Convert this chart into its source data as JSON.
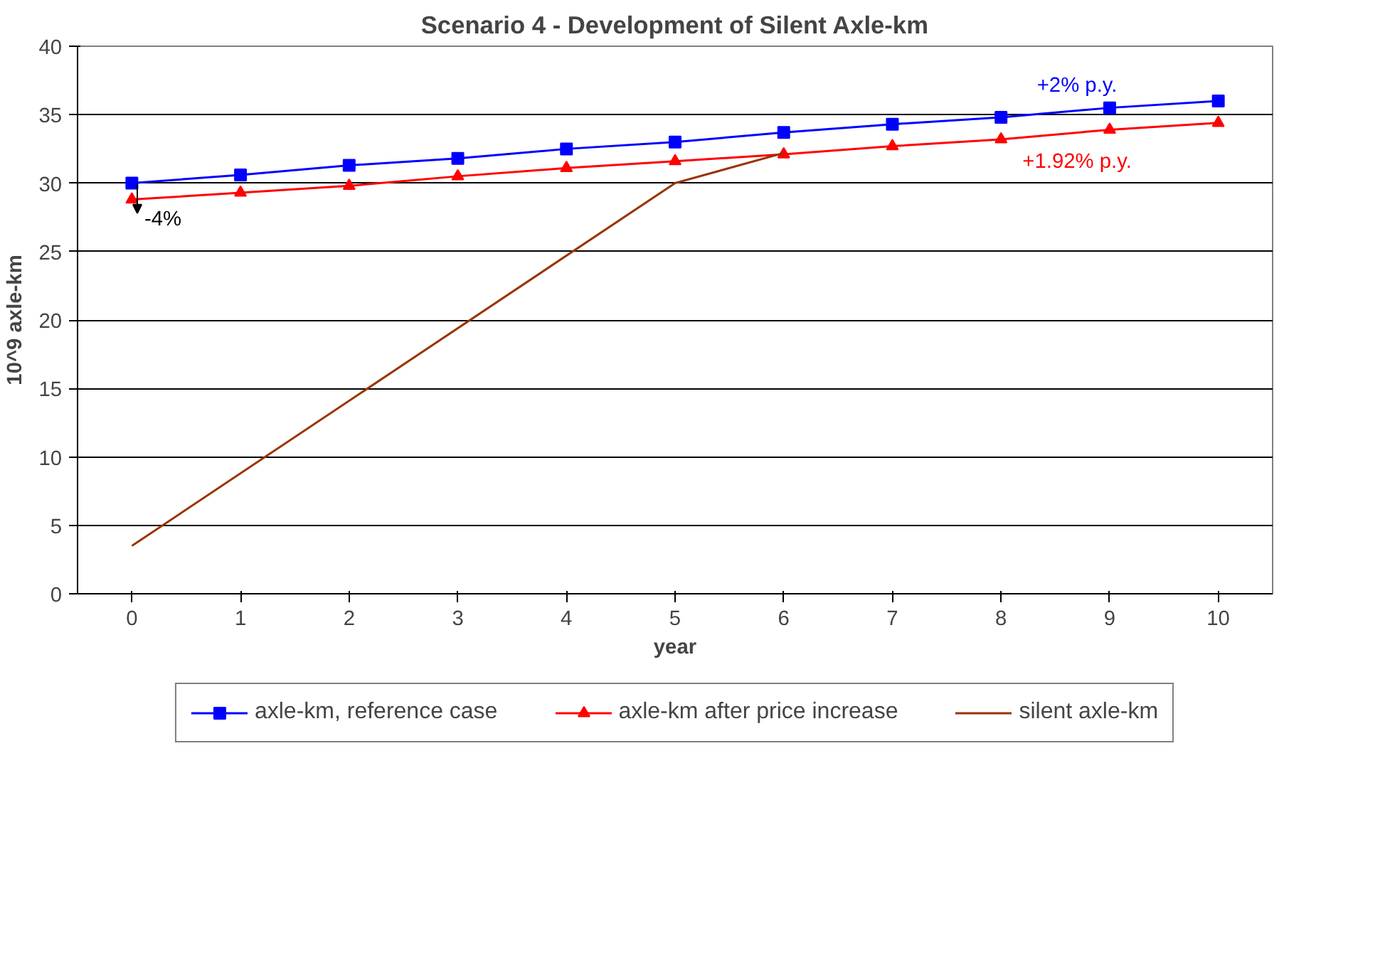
{
  "chart_data": {
    "type": "line",
    "title": "Scenario 4 - Development of Silent Axle-km",
    "xlabel": "year",
    "ylabel": "10^9 axle-km",
    "x": [
      0,
      1,
      2,
      3,
      4,
      5,
      6,
      7,
      8,
      9,
      10
    ],
    "series": [
      {
        "name": "axle-km, reference case",
        "color": "#0000ff",
        "marker": "square",
        "values": [
          30.0,
          30.6,
          31.3,
          31.8,
          32.5,
          33.0,
          33.7,
          34.3,
          34.8,
          35.5,
          36.0
        ]
      },
      {
        "name": "axle-km after price increase",
        "color": "#ff0000",
        "marker": "triangle",
        "values": [
          28.8,
          29.3,
          29.8,
          30.5,
          31.1,
          31.6,
          32.1,
          32.7,
          33.2,
          33.9,
          34.4
        ]
      },
      {
        "name": "silent axle-km",
        "color": "#993300",
        "marker": "none",
        "x": [
          0,
          5,
          6
        ],
        "values": [
          3.5,
          30.0,
          32.2
        ]
      }
    ],
    "annotations": [
      "+2% p.y.",
      "+1.92% p.y.",
      "-4%"
    ],
    "xlim": [
      -0.5,
      10.5
    ],
    "xticks": [
      0,
      1,
      2,
      3,
      4,
      5,
      6,
      7,
      8,
      9,
      10
    ],
    "ylim": [
      0,
      40
    ],
    "yticks": [
      0,
      5,
      10,
      15,
      20,
      25,
      30,
      35,
      40
    ],
    "grid": "y",
    "legend": "bottom"
  }
}
